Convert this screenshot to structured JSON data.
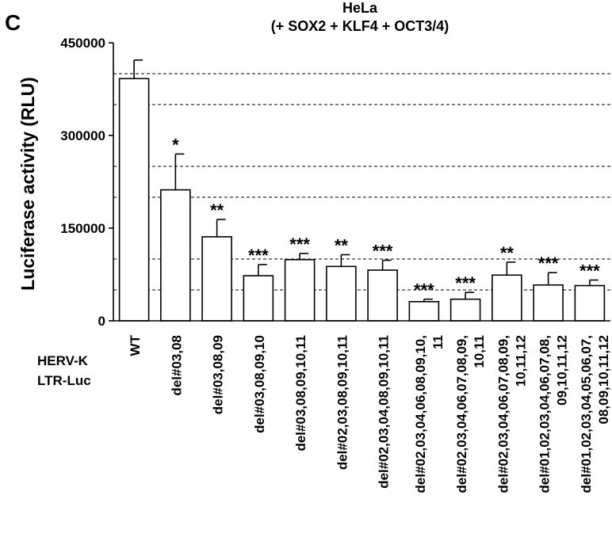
{
  "panel_label": "C",
  "chart_data": {
    "type": "bar",
    "title_lines": [
      "HeLa",
      "(+ SOX2 + KLF4 + OCT3/4)"
    ],
    "xlabel": "",
    "ylabel": "Luciferase activity (RLU)",
    "row_label_lines": [
      "HERV-K",
      "LTR-Luc"
    ],
    "ylim": [
      0,
      450000
    ],
    "yticks": [
      0,
      150000,
      300000,
      450000
    ],
    "ytick_labels": [
      "0",
      "150000",
      "300000",
      "450000"
    ],
    "gridlines": [
      50000,
      100000,
      200000,
      250000,
      350000,
      400000
    ],
    "categories": [
      [
        "WT"
      ],
      [
        "del#03,08"
      ],
      [
        "del#03,08,09"
      ],
      [
        "del#03,08,09,10"
      ],
      [
        "del#03,08,09,10,11"
      ],
      [
        "del#02,03,08,09,10,11"
      ],
      [
        "del#02,03,04,08,09,10,11"
      ],
      [
        "del#02,03,04,06,08,09,10,",
        "11"
      ],
      [
        "del#02,03,04,06,07,08,09,",
        "10,11"
      ],
      [
        "del#02,03,04,06,07,08,09,",
        "10,11,12"
      ],
      [
        "del#01,02,03,04,06,07,08,",
        "09,10,11,12"
      ],
      [
        "del#01,02,03,04,05,06,07,",
        "08,09,10,11,12"
      ]
    ],
    "values": [
      392000,
      212000,
      136000,
      73000,
      99000,
      88000,
      82000,
      31000,
      35000,
      74000,
      58000,
      57000
    ],
    "errors": [
      30000,
      58000,
      28000,
      18000,
      10000,
      19000,
      16000,
      4000,
      11000,
      21000,
      20000,
      9000
    ],
    "significance": [
      "",
      "*",
      "**",
      "***",
      "***",
      "**",
      "***",
      "***",
      "***",
      "**",
      "***",
      "***"
    ],
    "bar_color": "#ffffff",
    "edge_color": "#000000",
    "grid": "dashed, horizontal"
  }
}
